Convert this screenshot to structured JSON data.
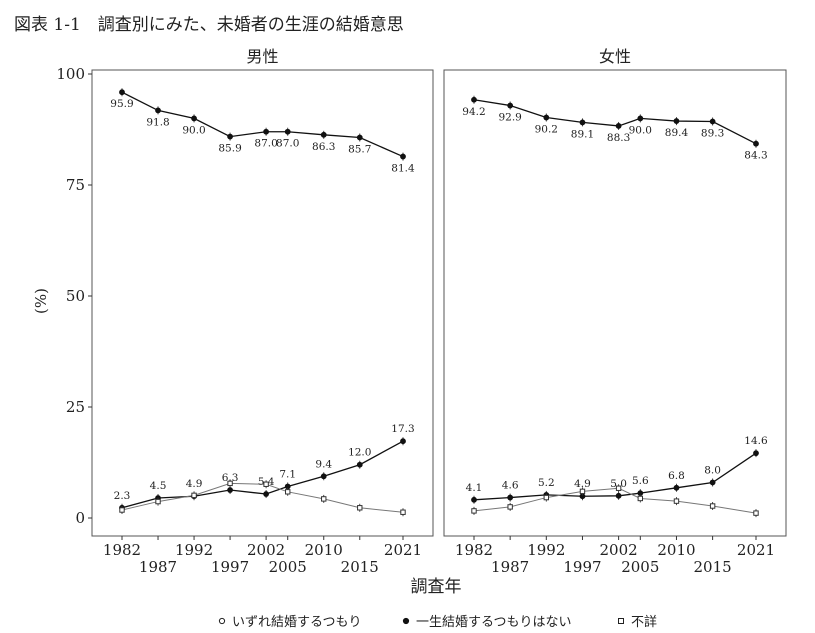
{
  "figure": {
    "title": "図表 1-1　調査別にみた、未婚者の生涯の結婚意思"
  },
  "chart_data": {
    "type": "line",
    "ylabel": "(%)",
    "xlabel": "調査年",
    "ylim": [
      0,
      100
    ],
    "yticks": [
      0,
      25,
      50,
      75,
      100
    ],
    "xticks": [
      "1982",
      "1987",
      "1992",
      "1997",
      "2002",
      "2005",
      "2010",
      "2015",
      "2021"
    ],
    "legend_position": "bottom",
    "legend": [
      {
        "label": "いずれ結婚するつもり",
        "marker": "circle-open"
      },
      {
        "label": "一生結婚するつもりはない",
        "marker": "circle-filled"
      },
      {
        "label": "不詳",
        "marker": "square-open"
      }
    ],
    "panels": [
      {
        "name": "男性",
        "series": [
          {
            "key": "marry",
            "values": [
              95.9,
              91.8,
              90.0,
              85.9,
              87.0,
              87.0,
              86.3,
              85.7,
              81.4
            ],
            "labels": [
              "95.9",
              "91.8",
              "90.0",
              "85.9",
              "87.0",
              "87.0",
              "86.3",
              "85.7",
              "81.4"
            ]
          },
          {
            "key": "never",
            "values": [
              2.3,
              4.5,
              4.9,
              6.3,
              5.4,
              7.1,
              9.4,
              12.0,
              17.3
            ],
            "labels": [
              "2.3",
              "4.5",
              "4.9",
              "6.3",
              "5.4",
              "7.1",
              "9.4",
              "12.0",
              "17.3"
            ]
          },
          {
            "key": "unknown",
            "values": [
              1.8,
              3.7,
              5.1,
              7.8,
              7.6,
              5.9,
              4.3,
              2.3,
              1.3
            ],
            "labels": []
          }
        ]
      },
      {
        "name": "女性",
        "series": [
          {
            "key": "marry",
            "values": [
              94.2,
              92.9,
              90.2,
              89.1,
              88.3,
              90.0,
              89.4,
              89.3,
              84.3
            ],
            "labels": [
              "94.2",
              "92.9",
              "90.2",
              "89.1",
              "88.3",
              "90.0",
              "89.4",
              "89.3",
              "84.3"
            ]
          },
          {
            "key": "never",
            "values": [
              4.1,
              4.6,
              5.2,
              4.9,
              5.0,
              5.6,
              6.8,
              8.0,
              14.6
            ],
            "labels": [
              "4.1",
              "4.6",
              "5.2",
              "4.9",
              "5.0",
              "5.6",
              "6.8",
              "8.0",
              "14.6"
            ]
          },
          {
            "key": "unknown",
            "values": [
              1.6,
              2.5,
              4.6,
              6.0,
              6.7,
              4.4,
              3.8,
              2.7,
              1.1
            ],
            "labels": []
          }
        ]
      }
    ]
  }
}
